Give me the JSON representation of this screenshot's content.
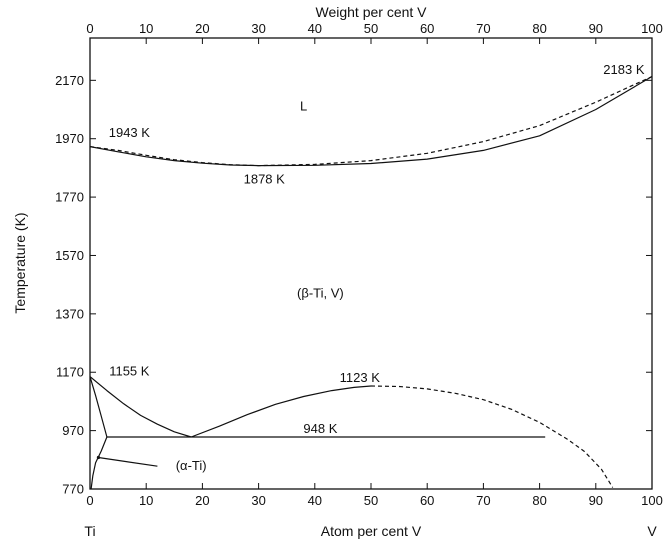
{
  "chart_data": {
    "type": "line",
    "title": "",
    "xlabel": "Atom per cent V",
    "x2label": "Weight per cent V",
    "ylabel": "Temperature (K)",
    "xlim": [
      0,
      100
    ],
    "ylim": [
      770,
      2315
    ],
    "grid": false,
    "x_ticks": [
      0,
      10,
      20,
      30,
      40,
      50,
      60,
      70,
      80,
      90,
      100
    ],
    "x_tick_labels": [
      "0",
      "10",
      "20",
      "30",
      "40",
      "50",
      "60",
      "70",
      "80",
      "90",
      "100"
    ],
    "x2_ticks": [
      0,
      10,
      20,
      30,
      40,
      50,
      60,
      70,
      80,
      90,
      100
    ],
    "x2_tick_labels": [
      "0",
      "10",
      "20",
      "30",
      "40",
      "50",
      "60",
      "70",
      "80",
      "90",
      "100"
    ],
    "y_ticks": [
      770,
      970,
      1170,
      1370,
      1570,
      1770,
      1970,
      2170
    ],
    "y_tick_labels": [
      "770",
      "970",
      "1170",
      "1370",
      "1570",
      "1770",
      "1970",
      "2170"
    ],
    "x_end_labels": {
      "left": "Ti",
      "right": "V"
    },
    "series": [
      {
        "style": "solid",
        "points": [
          [
            0,
            1943
          ],
          [
            5,
            1925
          ],
          [
            10,
            1908
          ],
          [
            15,
            1895
          ],
          [
            20,
            1886
          ],
          [
            25,
            1880
          ],
          [
            30,
            1878
          ],
          [
            40,
            1879
          ],
          [
            50,
            1885
          ],
          [
            60,
            1900
          ],
          [
            70,
            1930
          ],
          [
            80,
            1980
          ],
          [
            90,
            2070
          ],
          [
            100,
            2183
          ]
        ]
      },
      {
        "style": "dashed",
        "points": [
          [
            0,
            1943
          ],
          [
            5,
            1930
          ],
          [
            10,
            1913
          ],
          [
            15,
            1898
          ],
          [
            20,
            1888
          ],
          [
            25,
            1881
          ],
          [
            30,
            1878
          ],
          [
            40,
            1882
          ],
          [
            50,
            1895
          ],
          [
            60,
            1920
          ],
          [
            70,
            1960
          ],
          [
            80,
            2015
          ],
          [
            90,
            2095
          ],
          [
            100,
            2183
          ]
        ]
      },
      {
        "style": "solid",
        "points": [
          [
            0,
            1155
          ],
          [
            3,
            1107
          ],
          [
            6,
            1062
          ],
          [
            9,
            1022
          ],
          [
            12,
            992
          ],
          [
            15,
            966
          ],
          [
            18,
            948
          ]
        ]
      },
      {
        "style": "solid",
        "points": [
          [
            18,
            948
          ],
          [
            23,
            985
          ],
          [
            28,
            1025
          ],
          [
            33,
            1060
          ],
          [
            38,
            1087
          ],
          [
            43,
            1107
          ],
          [
            47,
            1118
          ],
          [
            50,
            1123
          ]
        ]
      },
      {
        "style": "dashed",
        "points": [
          [
            50,
            1123
          ],
          [
            55,
            1121
          ],
          [
            60,
            1113
          ],
          [
            65,
            1098
          ],
          [
            70,
            1076
          ],
          [
            75,
            1043
          ],
          [
            80,
            998
          ],
          [
            85,
            940
          ],
          [
            88,
            898
          ],
          [
            91,
            838
          ],
          [
            93,
            775
          ]
        ]
      },
      {
        "style": "solid",
        "points": [
          [
            3,
            948
          ],
          [
            81,
            948
          ]
        ]
      },
      {
        "style": "solid",
        "points": [
          [
            0,
            1155
          ],
          [
            1,
            1090
          ],
          [
            2,
            1020
          ],
          [
            3,
            948
          ]
        ]
      },
      {
        "style": "solid",
        "points": [
          [
            3,
            948
          ],
          [
            2,
            900
          ],
          [
            1,
            860
          ],
          [
            0.5,
            815
          ],
          [
            0.2,
            770
          ]
        ]
      },
      {
        "style": "solid",
        "points": [
          [
            1.5,
            878
          ],
          [
            12,
            848
          ]
        ]
      }
    ],
    "annotations": [
      {
        "text": "L",
        "x": 38,
        "y": 2080
      },
      {
        "text": "2183 K",
        "x": 95,
        "y": 2205
      },
      {
        "text": "1943 K",
        "x": 7,
        "y": 1990
      },
      {
        "text": "1878 K",
        "x": 31,
        "y": 1830
      },
      {
        "text": "(β-Ti, V)",
        "x": 41,
        "y": 1440
      },
      {
        "text": "1155 K",
        "x": 7,
        "y": 1172
      },
      {
        "text": "1123 K",
        "x": 48,
        "y": 1150
      },
      {
        "text": "948 K",
        "x": 41,
        "y": 975
      },
      {
        "text": "(α-Ti)",
        "x": 18,
        "y": 848
      }
    ]
  }
}
